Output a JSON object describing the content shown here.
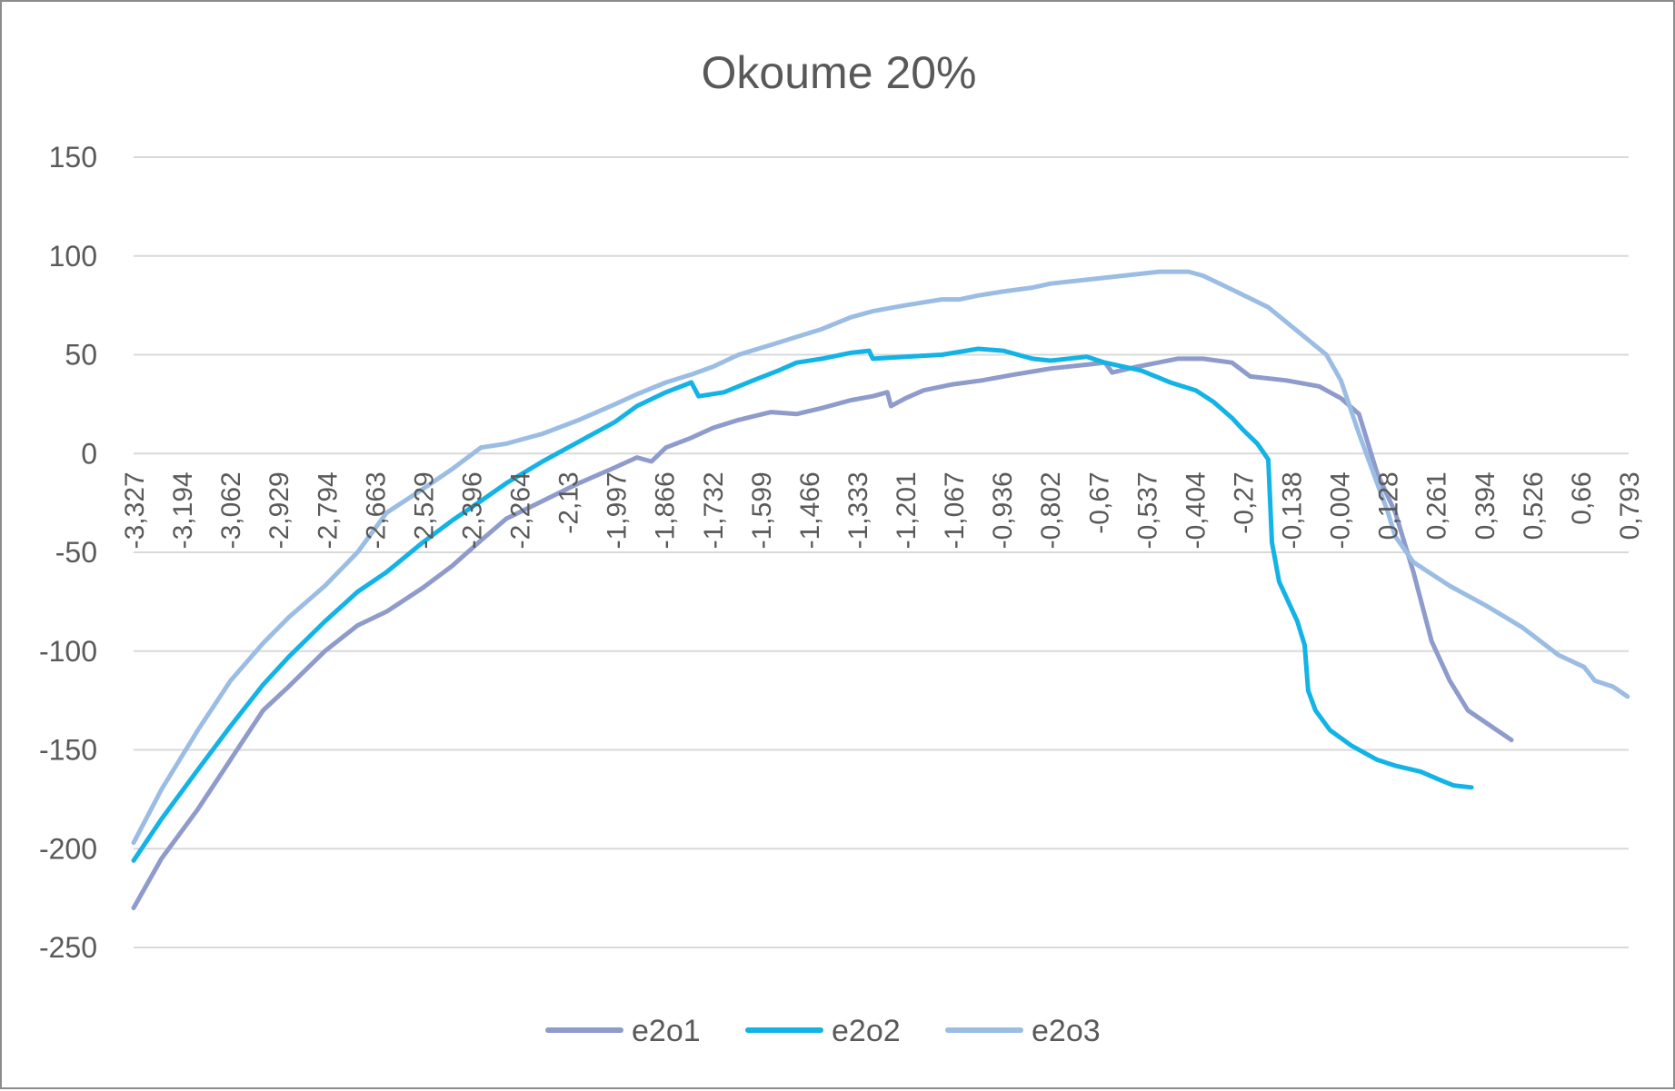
{
  "chart_data": {
    "type": "line",
    "title": "Okoume 20%",
    "xlabel": "",
    "ylabel": "",
    "ylim": [
      -250,
      150
    ],
    "yticks": [
      150,
      100,
      50,
      0,
      -50,
      -100,
      -150,
      -200,
      -250
    ],
    "xlim": [
      -3.327,
      0.793
    ],
    "xticks": [
      "-3,327",
      "-3,194",
      "-3,062",
      "-2,929",
      "-2,794",
      "-2,663",
      "-2,529",
      "-2,396",
      "-2,264",
      "-2,13",
      "-1,997",
      "-1,866",
      "-1,732",
      "-1,599",
      "-1,466",
      "-1,333",
      "-1,201",
      "-1,067",
      "-0,936",
      "-0,802",
      "-0,67",
      "-0,537",
      "-0,404",
      "-0,27",
      "-0,138",
      "-0,004",
      "0,128",
      "0,261",
      "0,394",
      "0,526",
      "0,66",
      "0,793"
    ],
    "grid": true,
    "legend": "bottom",
    "series": [
      {
        "name": "e2o1",
        "color": "#8e9bcb",
        "points": [
          [
            -3.327,
            -230
          ],
          [
            -3.25,
            -205
          ],
          [
            -3.15,
            -180
          ],
          [
            -3.06,
            -155
          ],
          [
            -2.97,
            -130
          ],
          [
            -2.9,
            -118
          ],
          [
            -2.8,
            -100
          ],
          [
            -2.71,
            -87
          ],
          [
            -2.63,
            -80
          ],
          [
            -2.53,
            -68
          ],
          [
            -2.45,
            -57
          ],
          [
            -2.37,
            -44
          ],
          [
            -2.3,
            -33
          ],
          [
            -2.2,
            -24
          ],
          [
            -2.1,
            -15
          ],
          [
            -2.0,
            -7
          ],
          [
            -1.94,
            -2
          ],
          [
            -1.9,
            -4
          ],
          [
            -1.86,
            3
          ],
          [
            -1.79,
            8
          ],
          [
            -1.73,
            13
          ],
          [
            -1.66,
            17
          ],
          [
            -1.57,
            21
          ],
          [
            -1.5,
            20
          ],
          [
            -1.43,
            23
          ],
          [
            -1.35,
            27
          ],
          [
            -1.29,
            29
          ],
          [
            -1.25,
            31
          ],
          [
            -1.24,
            24
          ],
          [
            -1.2,
            28
          ],
          [
            -1.15,
            32
          ],
          [
            -1.07,
            35
          ],
          [
            -0.99,
            37
          ],
          [
            -0.9,
            40
          ],
          [
            -0.8,
            43
          ],
          [
            -0.7,
            45
          ],
          [
            -0.65,
            46
          ],
          [
            -0.63,
            41
          ],
          [
            -0.56,
            44
          ],
          [
            -0.45,
            48
          ],
          [
            -0.38,
            48
          ],
          [
            -0.3,
            46
          ],
          [
            -0.25,
            39
          ],
          [
            -0.15,
            37
          ],
          [
            -0.06,
            34
          ],
          [
            0.0,
            28
          ],
          [
            0.05,
            20
          ],
          [
            0.1,
            -10
          ],
          [
            0.15,
            -30
          ],
          [
            0.2,
            -60
          ],
          [
            0.25,
            -95
          ],
          [
            0.3,
            -115
          ],
          [
            0.35,
            -130
          ],
          [
            0.43,
            -140
          ],
          [
            0.47,
            -145
          ]
        ]
      },
      {
        "name": "e2o2",
        "color": "#13b3e6",
        "points": [
          [
            -3.327,
            -206
          ],
          [
            -3.25,
            -185
          ],
          [
            -3.15,
            -160
          ],
          [
            -3.06,
            -138
          ],
          [
            -2.97,
            -117
          ],
          [
            -2.9,
            -103
          ],
          [
            -2.8,
            -85
          ],
          [
            -2.71,
            -70
          ],
          [
            -2.63,
            -60
          ],
          [
            -2.53,
            -45
          ],
          [
            -2.45,
            -34
          ],
          [
            -2.37,
            -24
          ],
          [
            -2.3,
            -15
          ],
          [
            -2.2,
            -4
          ],
          [
            -2.1,
            6
          ],
          [
            -2.0,
            16
          ],
          [
            -1.94,
            24
          ],
          [
            -1.86,
            31
          ],
          [
            -1.79,
            36
          ],
          [
            -1.77,
            29
          ],
          [
            -1.7,
            31
          ],
          [
            -1.62,
            37
          ],
          [
            -1.55,
            42
          ],
          [
            -1.5,
            46
          ],
          [
            -1.43,
            48
          ],
          [
            -1.35,
            51
          ],
          [
            -1.3,
            52
          ],
          [
            -1.29,
            48
          ],
          [
            -1.2,
            49
          ],
          [
            -1.1,
            50
          ],
          [
            -1.0,
            53
          ],
          [
            -0.93,
            52
          ],
          [
            -0.85,
            48
          ],
          [
            -0.8,
            47
          ],
          [
            -0.7,
            49
          ],
          [
            -0.65,
            46
          ],
          [
            -0.55,
            42
          ],
          [
            -0.47,
            36
          ],
          [
            -0.4,
            32
          ],
          [
            -0.35,
            26
          ],
          [
            -0.3,
            18
          ],
          [
            -0.27,
            12
          ],
          [
            -0.23,
            5
          ],
          [
            -0.2,
            -3
          ],
          [
            -0.19,
            -45
          ],
          [
            -0.17,
            -65
          ],
          [
            -0.12,
            -85
          ],
          [
            -0.1,
            -97
          ],
          [
            -0.09,
            -120
          ],
          [
            -0.07,
            -130
          ],
          [
            -0.03,
            -140
          ],
          [
            0.03,
            -148
          ],
          [
            0.1,
            -155
          ],
          [
            0.15,
            -158
          ],
          [
            0.22,
            -161
          ],
          [
            0.27,
            -165
          ],
          [
            0.31,
            -168
          ],
          [
            0.36,
            -169
          ]
        ]
      },
      {
        "name": "e2o3",
        "color": "#9bbde3",
        "points": [
          [
            -3.327,
            -197
          ],
          [
            -3.25,
            -170
          ],
          [
            -3.15,
            -140
          ],
          [
            -3.06,
            -115
          ],
          [
            -2.97,
            -96
          ],
          [
            -2.9,
            -83
          ],
          [
            -2.8,
            -67
          ],
          [
            -2.71,
            -50
          ],
          [
            -2.63,
            -30
          ],
          [
            -2.53,
            -18
          ],
          [
            -2.45,
            -8
          ],
          [
            -2.37,
            3
          ],
          [
            -2.3,
            5
          ],
          [
            -2.2,
            10
          ],
          [
            -2.1,
            17
          ],
          [
            -2.0,
            25
          ],
          [
            -1.94,
            30
          ],
          [
            -1.86,
            36
          ],
          [
            -1.79,
            40
          ],
          [
            -1.73,
            44
          ],
          [
            -1.66,
            50
          ],
          [
            -1.57,
            55
          ],
          [
            -1.5,
            59
          ],
          [
            -1.43,
            63
          ],
          [
            -1.35,
            69
          ],
          [
            -1.29,
            72
          ],
          [
            -1.2,
            75
          ],
          [
            -1.1,
            78
          ],
          [
            -1.05,
            78
          ],
          [
            -1.0,
            80
          ],
          [
            -0.93,
            82
          ],
          [
            -0.85,
            84
          ],
          [
            -0.8,
            86
          ],
          [
            -0.7,
            88
          ],
          [
            -0.6,
            90
          ],
          [
            -0.5,
            92
          ],
          [
            -0.42,
            92
          ],
          [
            -0.38,
            90
          ],
          [
            -0.3,
            83
          ],
          [
            -0.2,
            74
          ],
          [
            -0.12,
            62
          ],
          [
            -0.04,
            50
          ],
          [
            0.0,
            37
          ],
          [
            0.05,
            10
          ],
          [
            0.1,
            -15
          ],
          [
            0.13,
            -30
          ],
          [
            0.15,
            -42
          ],
          [
            0.2,
            -55
          ],
          [
            0.3,
            -67
          ],
          [
            0.4,
            -77
          ],
          [
            0.5,
            -88
          ],
          [
            0.6,
            -102
          ],
          [
            0.67,
            -108
          ],
          [
            0.7,
            -115
          ],
          [
            0.75,
            -118
          ],
          [
            0.79,
            -123
          ]
        ]
      }
    ]
  }
}
